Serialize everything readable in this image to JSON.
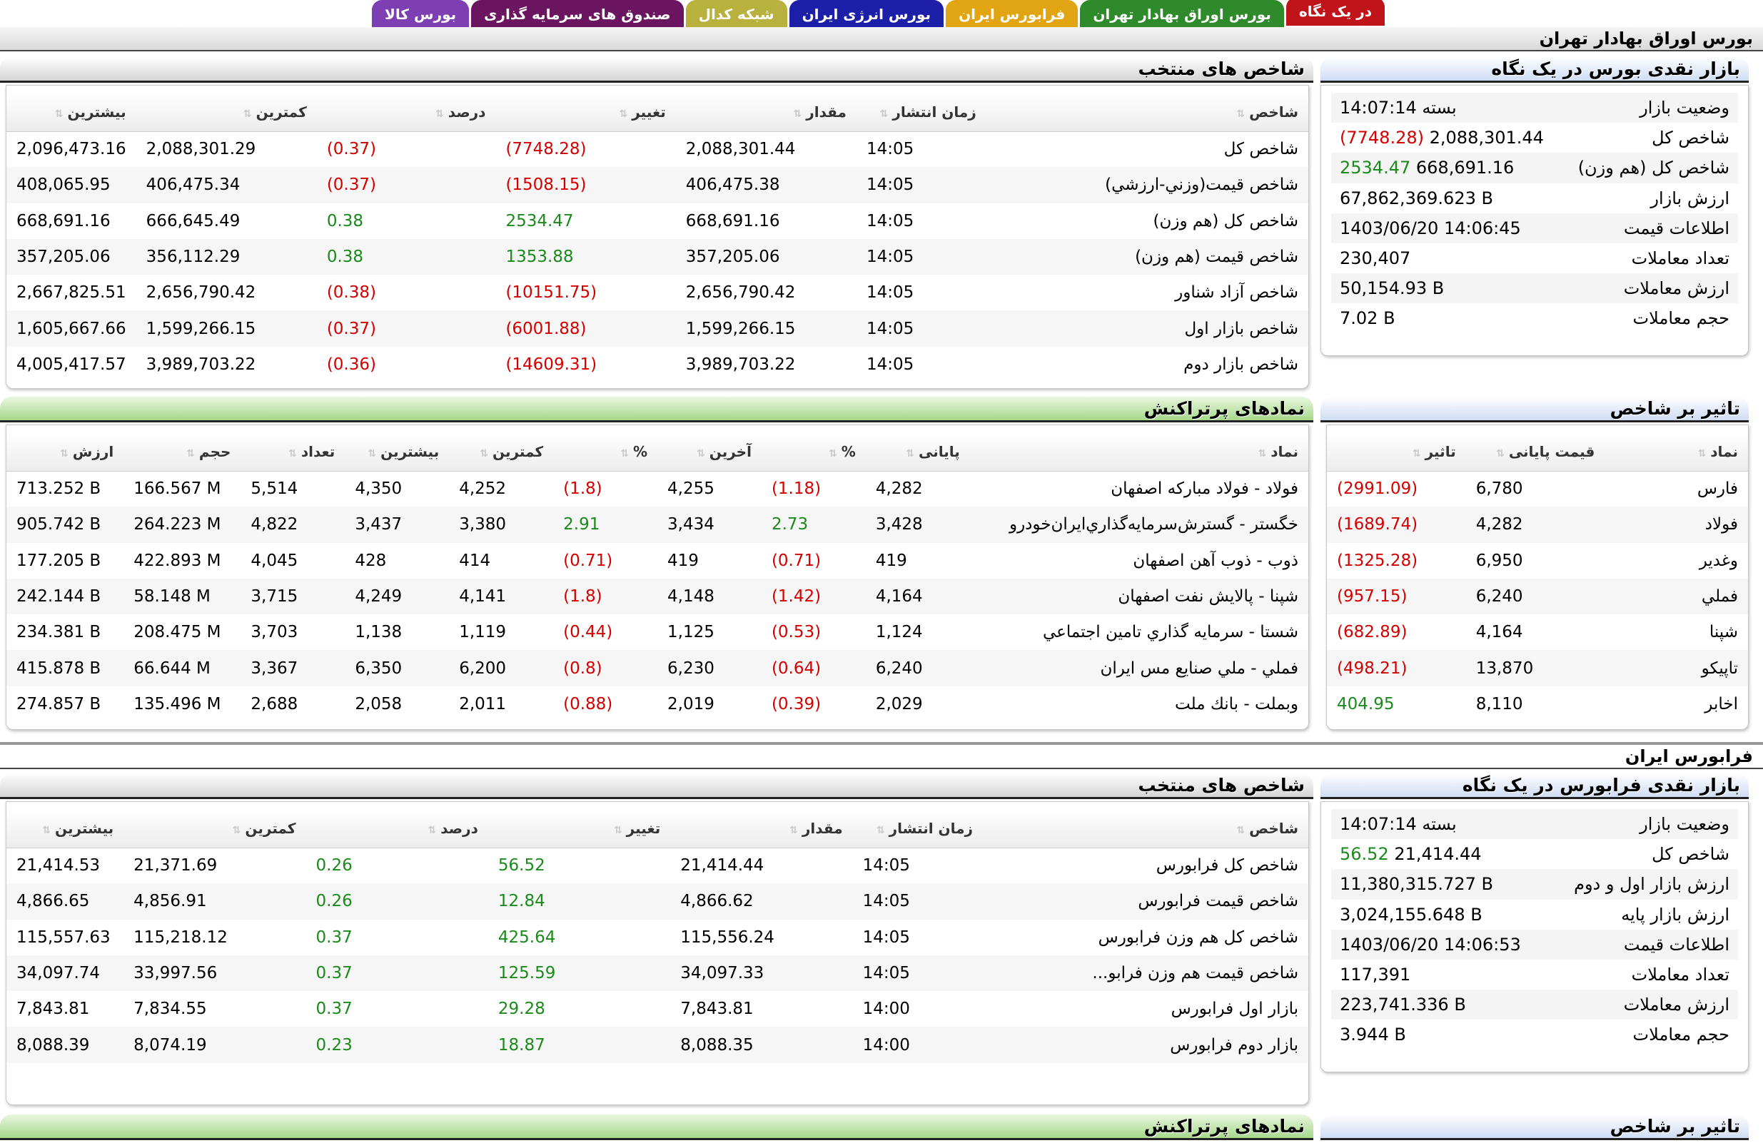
{
  "tabs": [
    {
      "label": "در یک نگاه",
      "color": "#c0141b"
    },
    {
      "label": "بورس اوراق بهادار تهران",
      "color": "#2f8a2b"
    },
    {
      "label": "فرابورس ایران",
      "color": "#e1a514"
    },
    {
      "label": "بورس انرژی ایران",
      "color": "#1c1fa8"
    },
    {
      "label": "شبکه کدال",
      "color": "#b8b13d"
    },
    {
      "label": "صندوق های سرمایه گذاری",
      "color": "#6b1560"
    },
    {
      "label": "بورس کالا",
      "color": "#7e3fb2"
    }
  ],
  "tse": {
    "market_title": "بورس اوراق بهادار تهران",
    "summary": {
      "title": "بازار نقدی بورس در یک نگاه",
      "rows": [
        {
          "k": "وضعیت بازار",
          "v": "بسته 14:07:14",
          "extra": ""
        },
        {
          "k": "شاخص کل",
          "v": "2,088,301.44",
          "extra": "(7748.28)",
          "extra_sign": "neg"
        },
        {
          "k": "شاخص کل (هم وزن)",
          "v": "668,691.16",
          "extra": "2534.47",
          "extra_sign": "pos"
        },
        {
          "k": "ارزش بازار",
          "v": "67,862,369.623 B",
          "extra": ""
        },
        {
          "k": "اطلاعات قیمت",
          "v": "1403/06/20 14:06:45",
          "extra": ""
        },
        {
          "k": "تعداد معاملات",
          "v": "230,407",
          "extra": ""
        },
        {
          "k": "ارزش معاملات",
          "v": "50,154.93 B",
          "extra": ""
        },
        {
          "k": "حجم معاملات",
          "v": "7.02 B",
          "extra": ""
        }
      ]
    },
    "indices": {
      "title": "شاخص های منتخب",
      "headers": [
        "شاخص",
        "زمان انتشار",
        "مقدار",
        "تغییر",
        "درصد",
        "کمترین",
        "بیشترین"
      ],
      "rows": [
        {
          "name": "شاخص كل",
          "time": "14:05",
          "value": "2,088,301.44",
          "change": "(7748.28)",
          "pct": "(0.37)",
          "sign": "neg",
          "low": "2,088,301.29",
          "high": "2,096,473.16"
        },
        {
          "name": "شاخص قيمت(وزني-ارزشي)",
          "time": "14:05",
          "value": "406,475.38",
          "change": "(1508.15)",
          "pct": "(0.37)",
          "sign": "neg",
          "low": "406,475.34",
          "high": "408,065.95"
        },
        {
          "name": "شاخص كل (هم وزن)",
          "time": "14:05",
          "value": "668,691.16",
          "change": "2534.47",
          "pct": "0.38",
          "sign": "pos",
          "low": "666,645.49",
          "high": "668,691.16"
        },
        {
          "name": "شاخص قيمت (هم وزن)",
          "time": "14:05",
          "value": "357,205.06",
          "change": "1353.88",
          "pct": "0.38",
          "sign": "pos",
          "low": "356,112.29",
          "high": "357,205.06"
        },
        {
          "name": "شاخص آزاد شناور",
          "time": "14:05",
          "value": "2,656,790.42",
          "change": "(10151.75)",
          "pct": "(0.38)",
          "sign": "neg",
          "low": "2,656,790.42",
          "high": "2,667,825.51"
        },
        {
          "name": "شاخص بازار اول",
          "time": "14:05",
          "value": "1,599,266.15",
          "change": "(6001.88)",
          "pct": "(0.37)",
          "sign": "neg",
          "low": "1,599,266.15",
          "high": "1,605,667.66"
        },
        {
          "name": "شاخص بازار دوم",
          "time": "14:05",
          "value": "3,989,703.22",
          "change": "(14609.31)",
          "pct": "(0.36)",
          "sign": "neg",
          "low": "3,989,703.22",
          "high": "4,005,417.57"
        }
      ]
    },
    "impact": {
      "title": "تاثیر بر شاخص",
      "headers": [
        "نماد",
        "قیمت پایانی",
        "تاثیر"
      ],
      "rows": [
        {
          "symbol": "فارس",
          "close": "6,780",
          "impact": "(2991.09)",
          "sign": "neg"
        },
        {
          "symbol": "فولاد",
          "close": "4,282",
          "impact": "(1689.74)",
          "sign": "neg"
        },
        {
          "symbol": "وغدير",
          "close": "6,950",
          "impact": "(1325.28)",
          "sign": "neg"
        },
        {
          "symbol": "فملي",
          "close": "6,240",
          "impact": "(957.15)",
          "sign": "neg"
        },
        {
          "symbol": "شپنا",
          "close": "4,164",
          "impact": "(682.89)",
          "sign": "neg"
        },
        {
          "symbol": "تاپيكو",
          "close": "13,870",
          "impact": "(498.21)",
          "sign": "neg"
        },
        {
          "symbol": "اخابر",
          "close": "8,110",
          "impact": "404.95",
          "sign": "pos"
        }
      ]
    },
    "traded": {
      "title": "نمادهای پرتراکنش",
      "headers": [
        "نماد",
        "پایانی",
        "%",
        "آخرین",
        "%",
        "کمترین",
        "بیشترین",
        "تعداد",
        "حجم",
        "ارزش"
      ],
      "rows": [
        {
          "name": "فولاد - فولاد مباركه اصفهان",
          "close": "4,282",
          "close_pct": "(1.18)",
          "close_sign": "neg",
          "last": "4,255",
          "last_pct": "(1.8)",
          "last_sign": "neg",
          "low": "4,252",
          "high": "4,350",
          "count": "5,514",
          "volume": "166.567 M",
          "value": "713.252 B"
        },
        {
          "name": "خگستر - گسترش‌سرمايه‌گذاري‌ايران‌خودرو",
          "close": "3,428",
          "close_pct": "2.73",
          "close_sign": "pos",
          "last": "3,434",
          "last_pct": "2.91",
          "last_sign": "pos",
          "low": "3,380",
          "high": "3,437",
          "count": "4,822",
          "volume": "264.223 M",
          "value": "905.742 B"
        },
        {
          "name": "ذوب - ذوب آهن اصفهان",
          "close": "419",
          "close_pct": "(0.71)",
          "close_sign": "neg",
          "last": "419",
          "last_pct": "(0.71)",
          "last_sign": "neg",
          "low": "414",
          "high": "428",
          "count": "4,045",
          "volume": "422.893 M",
          "value": "177.205 B"
        },
        {
          "name": "شپنا - پالايش نفت اصفهان",
          "close": "4,164",
          "close_pct": "(1.42)",
          "close_sign": "neg",
          "last": "4,148",
          "last_pct": "(1.8)",
          "last_sign": "neg",
          "low": "4,141",
          "high": "4,249",
          "count": "3,715",
          "volume": "58.148 M",
          "value": "242.144 B"
        },
        {
          "name": "شستا - سرمايه گذاري تامين اجتماعي",
          "close": "1,124",
          "close_pct": "(0.53)",
          "close_sign": "neg",
          "last": "1,125",
          "last_pct": "(0.44)",
          "last_sign": "neg",
          "low": "1,119",
          "high": "1,138",
          "count": "3,703",
          "volume": "208.475 M",
          "value": "234.381 B"
        },
        {
          "name": "فملي - ملي صنايع مس ايران",
          "close": "6,240",
          "close_pct": "(0.64)",
          "close_sign": "neg",
          "last": "6,230",
          "last_pct": "(0.8)",
          "last_sign": "neg",
          "low": "6,200",
          "high": "6,350",
          "count": "3,367",
          "volume": "66.644 M",
          "value": "415.878 B"
        },
        {
          "name": "وبملت - بانك ملت",
          "close": "2,029",
          "close_pct": "(0.39)",
          "close_sign": "neg",
          "last": "2,019",
          "last_pct": "(0.88)",
          "last_sign": "neg",
          "low": "2,011",
          "high": "2,058",
          "count": "2,688",
          "volume": "135.496 M",
          "value": "274.857 B"
        }
      ]
    }
  },
  "ifb": {
    "market_title": "فرابورس ایران",
    "summary": {
      "title": "بازار نقدی فرابورس در یک نگاه",
      "rows": [
        {
          "k": "وضعیت بازار",
          "v": "بسته 14:07:14",
          "extra": ""
        },
        {
          "k": "شاخص کل",
          "v": "21,414.44",
          "extra": "56.52",
          "extra_sign": "pos"
        },
        {
          "k": "ارزش بازار اول و دوم",
          "v": "11,380,315.727 B",
          "extra": ""
        },
        {
          "k": "ارزش بازار پایه",
          "v": "3,024,155.648 B",
          "extra": ""
        },
        {
          "k": "اطلاعات قیمت",
          "v": "1403/06/20 14:06:53",
          "extra": ""
        },
        {
          "k": "تعداد معاملات",
          "v": "117,391",
          "extra": ""
        },
        {
          "k": "ارزش معاملات",
          "v": "223,741.336 B",
          "extra": ""
        },
        {
          "k": "حجم معاملات",
          "v": "3.944 B",
          "extra": ""
        }
      ]
    },
    "indices": {
      "title": "شاخص های منتخب",
      "headers": [
        "شاخص",
        "زمان انتشار",
        "مقدار",
        "تغییر",
        "درصد",
        "کمترین",
        "بیشترین"
      ],
      "rows": [
        {
          "name": "شاخص كل فرابورس",
          "time": "14:05",
          "value": "21,414.44",
          "change": "56.52",
          "pct": "0.26",
          "sign": "pos",
          "low": "21,371.69",
          "high": "21,414.53"
        },
        {
          "name": "شاخص قيمت فرابورس",
          "time": "14:05",
          "value": "4,866.62",
          "change": "12.84",
          "pct": "0.26",
          "sign": "pos",
          "low": "4,856.91",
          "high": "4,866.65"
        },
        {
          "name": "شاخص كل هم وزن فرابورس",
          "time": "14:05",
          "value": "115,556.24",
          "change": "425.64",
          "pct": "0.37",
          "sign": "pos",
          "low": "115,218.12",
          "high": "115,557.63"
        },
        {
          "name": "شاخص قيمت هم وزن فرابو...",
          "time": "14:05",
          "value": "34,097.33",
          "change": "125.59",
          "pct": "0.37",
          "sign": "pos",
          "low": "33,997.56",
          "high": "34,097.74"
        },
        {
          "name": "بازار اول فرابورس",
          "time": "14:00",
          "value": "7,843.81",
          "change": "29.28",
          "pct": "0.37",
          "sign": "pos",
          "low": "7,834.55",
          "high": "7,843.81"
        },
        {
          "name": "بازار دوم فرابورس",
          "time": "14:00",
          "value": "8,088.35",
          "change": "18.87",
          "pct": "0.23",
          "sign": "pos",
          "low": "8,074.19",
          "high": "8,088.39"
        }
      ]
    },
    "traded_title": "نمادهای پرتراکنش",
    "impact_title": "تاثیر بر شاخص"
  }
}
